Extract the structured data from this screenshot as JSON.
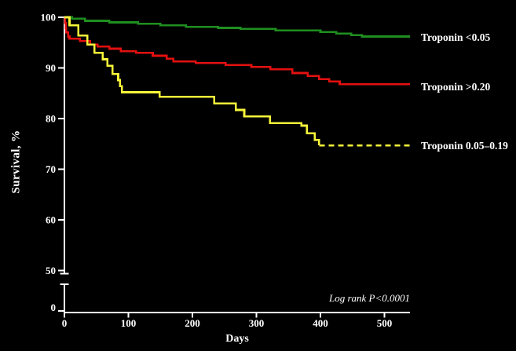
{
  "figure": {
    "background": "#000000",
    "text_color": "#ffffff",
    "axis_color": "#ffffff"
  },
  "chart_data": {
    "type": "line",
    "subtype": "kaplan-meier-survival-step",
    "title": "",
    "xlabel": "Days",
    "ylabel": "Survival, %",
    "annotation": "Log rank P<0.0001",
    "x_ticks": [
      0,
      100,
      200,
      300,
      400,
      500
    ],
    "y_ticks": [
      100,
      90,
      80,
      70,
      60,
      50,
      0
    ],
    "xlim": [
      0,
      540
    ],
    "ylim": [
      50,
      100
    ],
    "y_axis_break_between": [
      0,
      50
    ],
    "grid": false,
    "legend_position": "right-of-curve-ends",
    "series": [
      {
        "name": "Troponin <0.05",
        "id": "troponin-lt-005",
        "color": "#1f8f1f",
        "style": "solid",
        "final_survival_pct": 96.2,
        "points": [
          [
            0,
            100
          ],
          [
            12,
            99.7
          ],
          [
            32,
            99.3
          ],
          [
            70,
            99.0
          ],
          [
            115,
            98.7
          ],
          [
            150,
            98.4
          ],
          [
            190,
            98.1
          ],
          [
            240,
            97.9
          ],
          [
            275,
            97.7
          ],
          [
            330,
            97.4
          ],
          [
            400,
            97.1
          ],
          [
            425,
            96.8
          ],
          [
            448,
            96.5
          ],
          [
            465,
            96.2
          ],
          [
            540,
            96.2
          ]
        ]
      },
      {
        "name": "Troponin >0.20",
        "id": "troponin-gt-020",
        "color": "#e31010",
        "style": "solid",
        "final_survival_pct": 86.8,
        "points": [
          [
            0,
            100
          ],
          [
            1,
            98.9
          ],
          [
            2,
            97.8
          ],
          [
            3,
            97.0
          ],
          [
            6,
            96.2
          ],
          [
            8,
            95.8
          ],
          [
            24,
            95.3
          ],
          [
            40,
            94.6
          ],
          [
            52,
            94.2
          ],
          [
            70,
            93.8
          ],
          [
            88,
            93.3
          ],
          [
            112,
            93.0
          ],
          [
            138,
            92.4
          ],
          [
            160,
            91.8
          ],
          [
            170,
            91.3
          ],
          [
            205,
            91.0
          ],
          [
            252,
            90.6
          ],
          [
            292,
            90.2
          ],
          [
            322,
            89.7
          ],
          [
            356,
            89.0
          ],
          [
            380,
            88.4
          ],
          [
            398,
            87.8
          ],
          [
            414,
            87.3
          ],
          [
            430,
            86.8
          ],
          [
            540,
            86.8
          ]
        ]
      },
      {
        "name": "Troponin 0.05–0.19",
        "id": "troponin-005-019",
        "color": "#f6f63a",
        "style": "solid_then_dashed",
        "dash_from_day": 398,
        "final_survival_pct": 74.7,
        "points": [
          [
            0,
            100
          ],
          [
            8,
            98.4
          ],
          [
            22,
            96.4
          ],
          [
            36,
            94.6
          ],
          [
            47,
            93.0
          ],
          [
            60,
            91.7
          ],
          [
            67,
            90.4
          ],
          [
            75,
            88.8
          ],
          [
            84,
            87.6
          ],
          [
            87,
            86.4
          ],
          [
            90,
            85.2
          ],
          [
            149,
            84.3
          ],
          [
            234,
            83.0
          ],
          [
            268,
            81.7
          ],
          [
            281,
            80.4
          ],
          [
            321,
            79.1
          ],
          [
            370,
            78.6
          ],
          [
            379,
            77.1
          ],
          [
            391,
            75.8
          ],
          [
            398,
            74.7
          ],
          [
            540,
            74.7
          ]
        ]
      }
    ]
  }
}
